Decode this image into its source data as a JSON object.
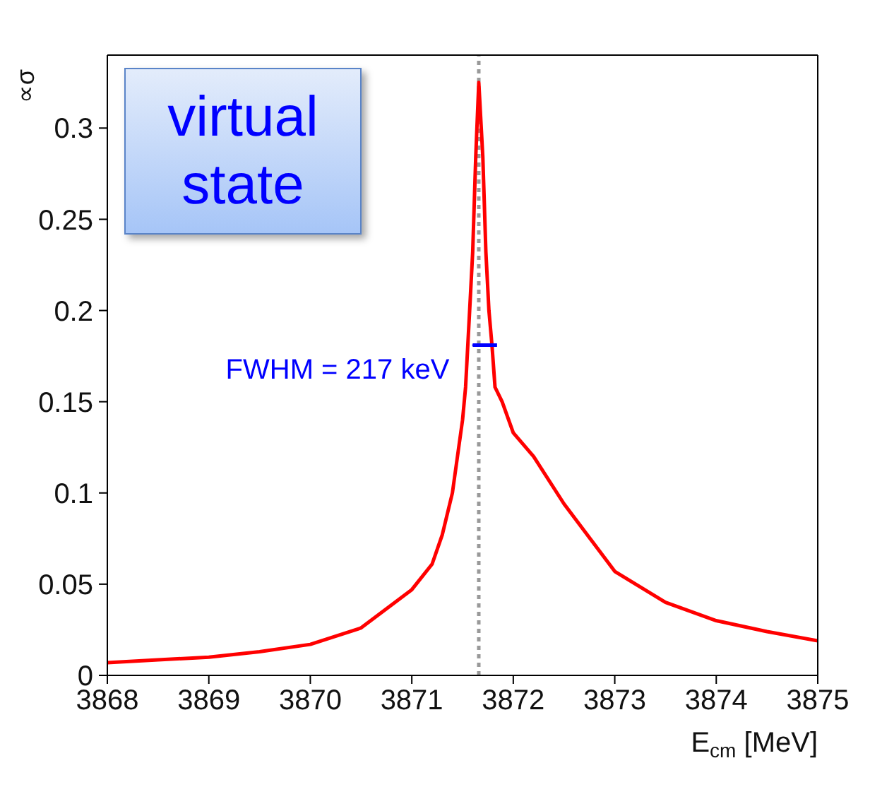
{
  "chart_data": {
    "type": "line",
    "xlabel": "E$_{cm}$ [MeV]",
    "ylabel": "∝σ",
    "xlim": [
      3868,
      3875
    ],
    "xticks": [
      3868,
      3869,
      3870,
      3871,
      3872,
      3873,
      3874,
      3875
    ],
    "ylim": [
      0,
      0.34
    ],
    "yticks": [
      0,
      0.05,
      0.1,
      0.15,
      0.2,
      0.25,
      0.3
    ],
    "marker": "none",
    "annotations": [
      "virtual state",
      {
        "text": "FWHM = 217 keV",
        "x": 3871.6,
        "y": 0.181
      }
    ],
    "ref_lines": [
      {
        "axis": "x",
        "value": 3871.66,
        "color": "#999999",
        "line_style": "dotted"
      }
    ],
    "series": [
      {
        "color": "#ff0000",
        "line_style": "solid",
        "x": [
          3868,
          3868.5,
          3869,
          3869.5,
          3870,
          3870.5,
          3871,
          3871.2,
          3871.3,
          3871.4,
          3871.5,
          3871.53,
          3871.57,
          3871.6,
          3871.63,
          3871.66,
          3871.7,
          3871.73,
          3871.76,
          3871.79,
          3871.82,
          3871.89,
          3872,
          3872.2,
          3872.5,
          3873,
          3873.5,
          3874,
          3874.5,
          3875
        ],
        "values": [
          0.007,
          0.0085,
          0.01,
          0.013,
          0.017,
          0.026,
          0.047,
          0.061,
          0.077,
          0.1,
          0.14,
          0.158,
          0.2,
          0.232,
          0.284,
          0.325,
          0.284,
          0.232,
          0.2,
          0.181,
          0.158,
          0.15,
          0.133,
          0.12,
          0.094,
          0.057,
          0.04,
          0.03,
          0.024,
          0.019
        ]
      },
      {
        "color": "#0000ff",
        "line_style": "solid",
        "x": [
          3871.6,
          3871.84
        ],
        "values": [
          0.181,
          0.181
        ]
      }
    ]
  }
}
